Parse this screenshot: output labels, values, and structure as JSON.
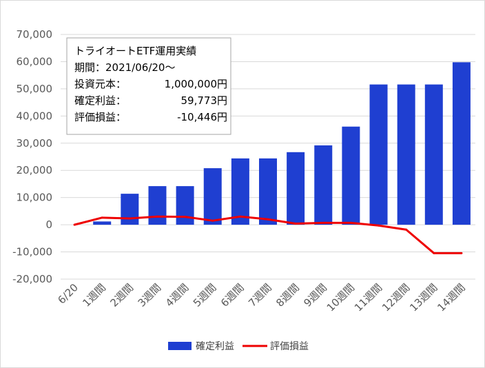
{
  "chart_data": {
    "type": "bar+line",
    "categories": [
      "6/20",
      "1週間",
      "2週間",
      "3週間",
      "4週間",
      "5週間",
      "6週間",
      "7週間",
      "8週間",
      "9週間",
      "10週間",
      "11週間",
      "12週間",
      "13週間",
      "14週間"
    ],
    "series": [
      {
        "name": "確定利益",
        "type": "bar",
        "color": "#1f3fd1",
        "values": [
          null,
          1200,
          11400,
          14200,
          14200,
          20800,
          24400,
          24400,
          26700,
          29200,
          36100,
          51600,
          51600,
          51600,
          59773
        ]
      },
      {
        "name": "評価損益",
        "type": "line",
        "color": "#ee0000",
        "values": [
          0,
          2600,
          2300,
          3000,
          2900,
          1500,
          3000,
          2000,
          400,
          700,
          700,
          -300,
          -1800,
          -10446,
          -10446
        ]
      }
    ],
    "y_ticks": [
      "70,000",
      "60,000",
      "50,000",
      "40,000",
      "30,000",
      "20,000",
      "10,000",
      "0",
      "-10,000",
      "-20,000"
    ],
    "ylim": [
      -20000,
      70000
    ],
    "y_step": 10000,
    "grid": true,
    "legend_position": "bottom",
    "info_box": {
      "lines": [
        {
          "label": "トライオートETF運用実績",
          "value": ""
        },
        {
          "label": "期間：2021/06/20～",
          "value": ""
        },
        {
          "label": "投資元本：",
          "value": "1,000,000円"
        },
        {
          "label": "確定利益：",
          "value": "59,773円"
        },
        {
          "label": "評価損益：",
          "value": "-10,446円"
        }
      ]
    }
  }
}
